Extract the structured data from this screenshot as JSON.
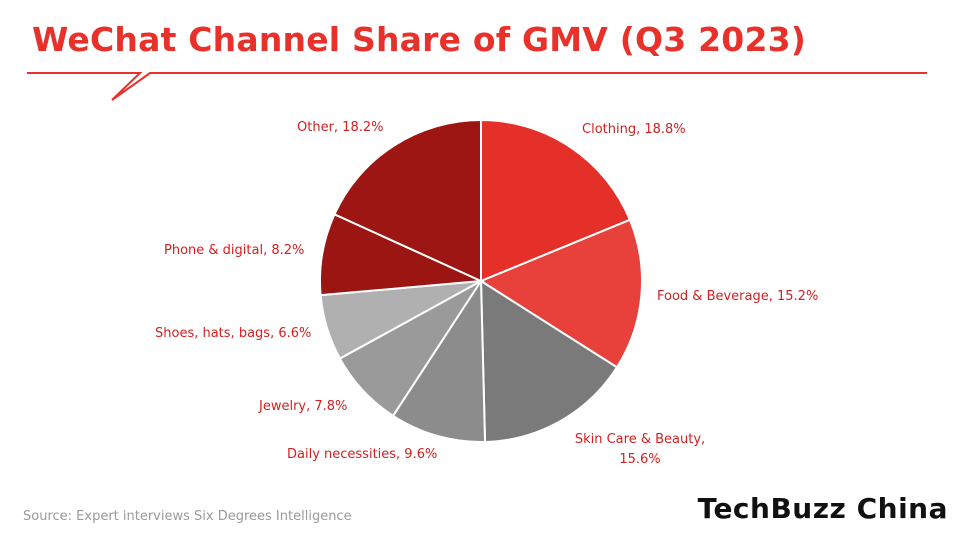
{
  "title": "WeChat Channel Share of GMV (Q3 2023)",
  "source": "Source: Expert interviews Six Degrees Intelligence",
  "brand": "TechBuzz China",
  "colors": {
    "title": "#e8312a",
    "callout": "#e8312a",
    "label": "#d42020"
  },
  "chart_data": {
    "type": "pie",
    "title": "WeChat Channel Share of GMV (Q3 2023)",
    "unit": "%",
    "slices": [
      {
        "label": "Clothing, 18.8%",
        "category": "Clothing",
        "value": 18.8,
        "color": "#e5302a"
      },
      {
        "label": "Food & Beverage, 15.2%",
        "category": "Food & Beverage",
        "value": 15.2,
        "color": "#e8403a"
      },
      {
        "label": "Skin Care & Beauty, 15.6%",
        "category": "Skin Care & Beauty",
        "value": 15.6,
        "color": "#7a7a7a"
      },
      {
        "label": "Daily necessities, 9.6%",
        "category": "Daily necessities",
        "value": 9.6,
        "color": "#8c8c8c"
      },
      {
        "label": "Jewelry, 7.8%",
        "category": "Jewelry",
        "value": 7.8,
        "color": "#9a9a9a"
      },
      {
        "label": "Shoes, hats, bags, 6.6%",
        "category": "Shoes, hats, bags",
        "value": 6.6,
        "color": "#b0b0b0"
      },
      {
        "label": "Phone & digital, 8.2%",
        "category": "Phone & digital",
        "value": 8.2,
        "color": "#9b1512"
      },
      {
        "label": "Other, 18.2%",
        "category": "Other",
        "value": 18.2,
        "color": "#9e1613"
      }
    ]
  }
}
